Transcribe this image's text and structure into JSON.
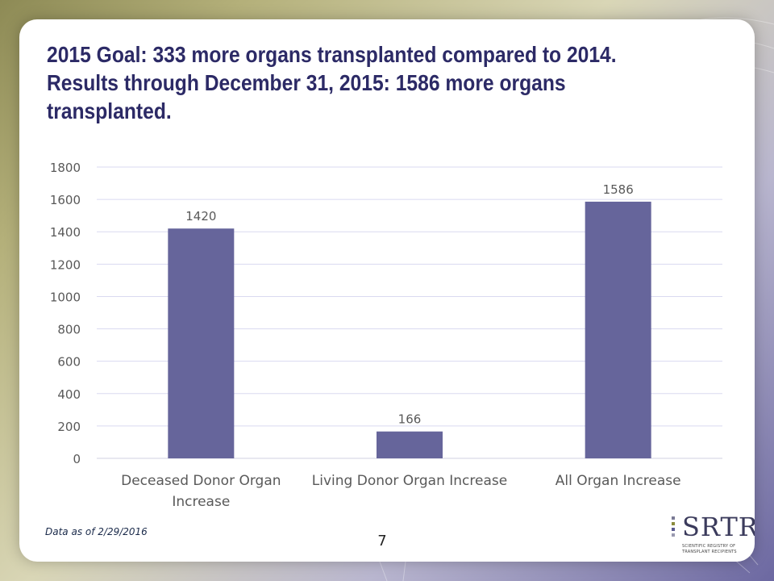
{
  "slide": {
    "title_lines": [
      "2015 Goal: 333 more organs transplanted compared to 2014.",
      "Results through December 31, 2015: 1586 more organs",
      "transplanted."
    ],
    "footnote": "Data as of 2/29/2016",
    "page_number": "7",
    "logo": {
      "mark": "SRTR",
      "line1": "SCIENTIFIC REGISTRY OF",
      "line2": "TRANSPLANT RECIPIENTS"
    }
  },
  "chart_data": {
    "type": "bar",
    "categories": [
      [
        "Deceased Donor Organ",
        "Increase"
      ],
      [
        "Living Donor Organ Increase"
      ],
      [
        "All Organ Increase"
      ]
    ],
    "values": [
      1420,
      166,
      1586
    ],
    "data_labels": [
      "1420",
      "166",
      "1586"
    ],
    "ylim": [
      0,
      1800
    ],
    "yticks": [
      "0",
      "200",
      "400",
      "600",
      "800",
      "1000",
      "1200",
      "1400",
      "1600",
      "1800"
    ],
    "grid": true,
    "legend": "none",
    "colors": {
      "bar": "#66659b",
      "grid": "#dadaf0",
      "text": "#595959"
    }
  }
}
